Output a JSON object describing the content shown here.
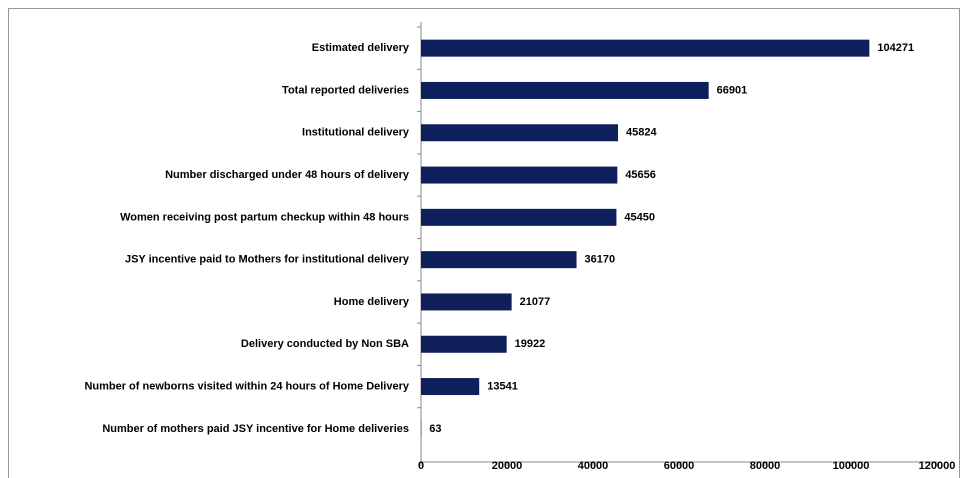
{
  "chart_data": {
    "type": "bar",
    "orientation": "horizontal",
    "categories": [
      "Estimated delivery",
      "Total reported deliveries",
      "Institutional delivery",
      "Number discharged under 48 hours of delivery",
      "Women receiving post partum checkup within 48 hours",
      "JSY incentive paid to Mothers for institutional delivery",
      "Home delivery",
      "Delivery conducted by Non SBA",
      "Number of newborns visited within 24 hours of Home Delivery",
      "Number of mothers paid JSY incentive for Home deliveries"
    ],
    "values": [
      104271,
      66901,
      45824,
      45656,
      45450,
      36170,
      21077,
      19922,
      13541,
      63
    ],
    "color": "#0f1f5c",
    "xlim": [
      0,
      120000
    ],
    "xticks": [
      0,
      20000,
      40000,
      60000,
      80000,
      100000,
      120000
    ],
    "grid": false
  }
}
